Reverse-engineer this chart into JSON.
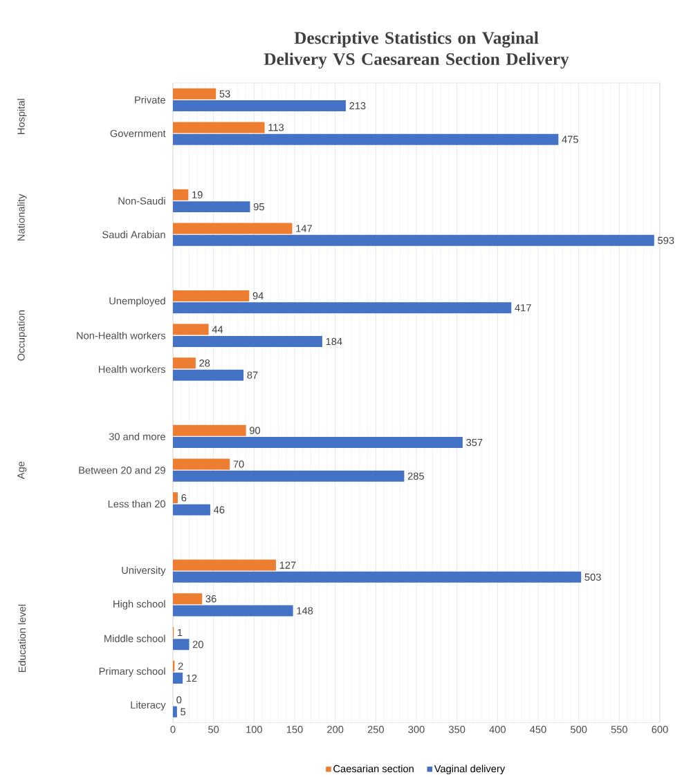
{
  "chart_data": {
    "type": "bar",
    "orientation": "horizontal",
    "title": "Descriptive Statistics on Vaginal Delivery VS Caesarean Section Delivery",
    "categories": [
      "Private",
      "Government",
      null,
      "Non-Saudi",
      "Saudi Arabian",
      null,
      "Unemployed",
      "Non-Health workers",
      "Health workers",
      null,
      "30 and more",
      "Between 20 and 29",
      "Less than 20",
      null,
      "University",
      "High school",
      "Middle school",
      "Primary school",
      "Literacy"
    ],
    "series": [
      {
        "name": "Caesarian section",
        "color": "#ed7d31",
        "values": [
          53,
          113,
          null,
          19,
          147,
          null,
          94,
          44,
          28,
          null,
          90,
          70,
          6,
          null,
          127,
          36,
          1,
          2,
          0
        ]
      },
      {
        "name": "Vaginal delivery",
        "color": "#4472c4",
        "values": [
          213,
          475,
          null,
          95,
          593,
          null,
          417,
          184,
          87,
          null,
          357,
          285,
          46,
          null,
          503,
          148,
          20,
          12,
          5
        ]
      }
    ],
    "annotations": [
      "Hospital",
      "Nationality",
      "Occupation",
      "Age",
      "Education level"
    ],
    "xlim": [
      0,
      600
    ],
    "xticks": [
      0,
      50,
      100,
      150,
      200,
      250,
      300,
      350,
      400,
      450,
      500,
      550,
      600
    ],
    "grid": "x",
    "legend": "bottom",
    "data_labels": true
  }
}
